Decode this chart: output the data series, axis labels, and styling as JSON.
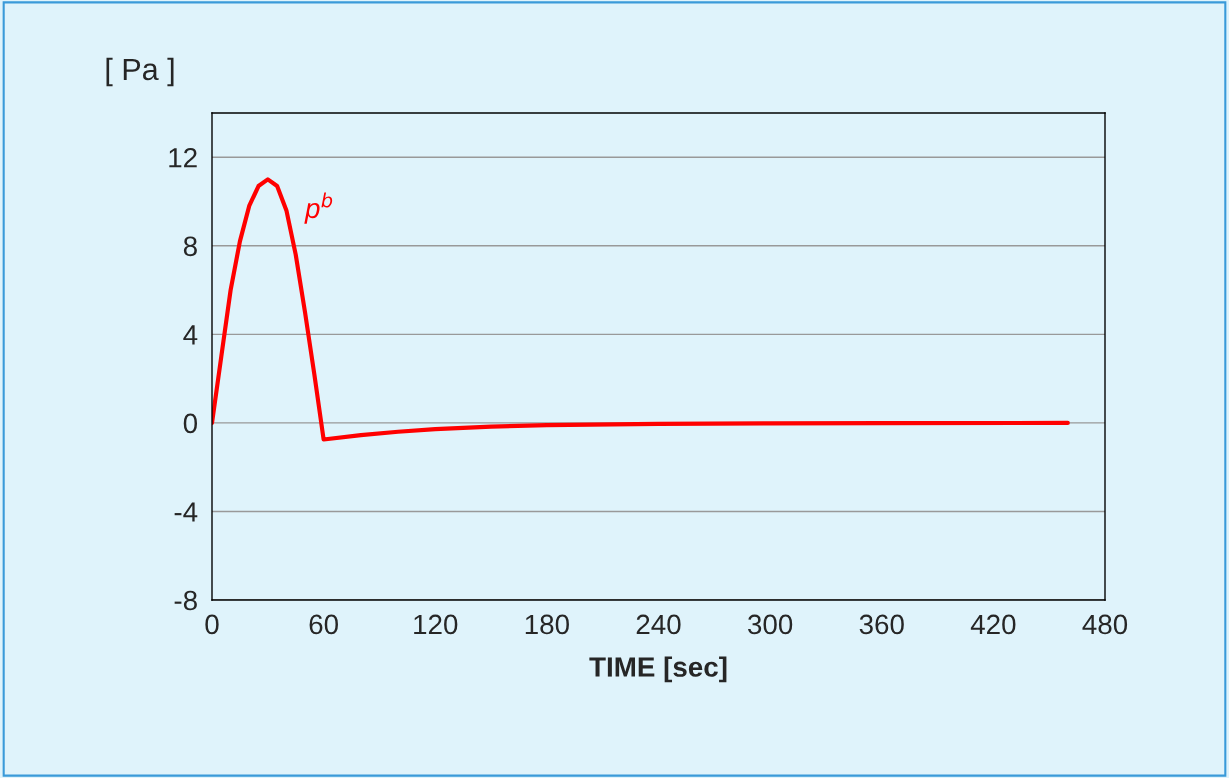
{
  "chart_data": {
    "type": "line",
    "ylabel": "[ Pa ]",
    "xlabel": "TIME [sec]",
    "xlim": [
      0,
      480
    ],
    "xticks": [
      0,
      60,
      120,
      180,
      240,
      300,
      360,
      420,
      480
    ],
    "ylim": [
      -8,
      14
    ],
    "yticks": [
      -8,
      -4,
      0,
      4,
      8,
      12
    ],
    "grid": "y",
    "legend": false,
    "marker": "none",
    "line_style": "solid",
    "series": [
      {
        "name": "p$^{b}$",
        "color": "#ff0000",
        "x": [
          0,
          5,
          10,
          15,
          20,
          25,
          30,
          35,
          40,
          45,
          50,
          55,
          60,
          80,
          100,
          120,
          150,
          180,
          240,
          300,
          360,
          460
        ],
        "values": [
          0,
          3,
          6,
          8.2,
          9.8,
          10.7,
          11,
          10.7,
          9.6,
          7.6,
          5,
          2.2,
          -0.75,
          -0.55,
          -0.4,
          -0.28,
          -0.17,
          -0.1,
          -0.04,
          -0.02,
          -0.01,
          0
        ]
      }
    ]
  }
}
